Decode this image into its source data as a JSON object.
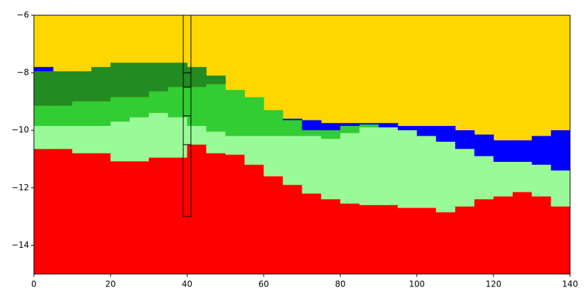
{
  "chart_data": {
    "type": "layers",
    "x": [
      0,
      5,
      10,
      15,
      20,
      25,
      30,
      35,
      40,
      45,
      50,
      55,
      60,
      65,
      70,
      75,
      80,
      85,
      90,
      95,
      100,
      105,
      110,
      115,
      120,
      125,
      130,
      135
    ],
    "xlim": [
      0,
      140
    ],
    "ylim": [
      -15,
      -6
    ],
    "xticks": [
      0,
      20,
      40,
      60,
      80,
      100,
      120,
      140
    ],
    "yticks": [
      {
        "value": -14,
        "label": "−14"
      },
      {
        "value": -12,
        "label": "−12"
      },
      {
        "value": -10,
        "label": "−10"
      },
      {
        "value": -8,
        "label": "−8"
      },
      {
        "value": -6,
        "label": "−6"
      }
    ],
    "background": "#ffd700",
    "series": [
      {
        "color": "#ff0000",
        "values": [
          -10.65,
          -10.65,
          -10.8,
          -10.8,
          -11.08,
          -11.08,
          -10.95,
          -10.95,
          -10.5,
          -10.8,
          -10.85,
          -11.2,
          -11.6,
          -11.9,
          -12.2,
          -12.4,
          -12.55,
          -12.6,
          -12.6,
          -12.7,
          -12.7,
          -12.85,
          -12.65,
          -12.4,
          -12.3,
          -12.15,
          -12.3,
          -12.65
        ]
      },
      {
        "color": "#98fb98",
        "values": [
          -9.85,
          -9.85,
          -9.85,
          -9.85,
          -9.7,
          -9.55,
          -9.4,
          -9.55,
          -9.85,
          -10.05,
          -10.2,
          -10.2,
          -10.2,
          -10.2,
          -10.2,
          -10.3,
          -10.1,
          -9.9,
          -9.9,
          -10.0,
          -10.2,
          -10.4,
          -10.65,
          -10.9,
          -11.1,
          -11.1,
          -11.2,
          -11.4
        ]
      },
      {
        "color": "#32cd32",
        "values": [
          -9.15,
          -9.15,
          -9.0,
          -9.0,
          -8.85,
          -8.85,
          -8.65,
          -8.5,
          -8.5,
          -8.4,
          -8.6,
          -8.85,
          -9.3,
          -9.6,
          -10.0,
          -10.0,
          -9.85,
          -9.8,
          -9.9,
          -10.0,
          -10.2,
          -10.4,
          -10.65,
          -10.9,
          -11.1,
          -11.1,
          -11.2,
          -11.4
        ]
      },
      {
        "color": "#228b22",
        "values": [
          -7.95,
          -7.95,
          -7.95,
          -7.8,
          -7.65,
          -7.65,
          -7.65,
          -7.65,
          -7.8,
          -8.1,
          -8.6,
          -8.85,
          -9.3,
          -9.6,
          -10.0,
          -10.0,
          -9.85,
          -9.8,
          -9.9,
          -10.0,
          -10.2,
          -10.4,
          -10.65,
          -10.9,
          -11.1,
          -11.1,
          -11.2,
          -11.4
        ]
      },
      {
        "color": "#0000ff",
        "values": [
          -7.8,
          -7.95,
          -7.95,
          -7.8,
          -7.65,
          -7.65,
          -7.65,
          -7.65,
          -7.8,
          -8.1,
          -8.6,
          -8.85,
          -9.3,
          -9.65,
          -9.65,
          -9.75,
          -9.75,
          -9.75,
          -9.75,
          -9.85,
          -9.85,
          -9.85,
          -10.0,
          -10.15,
          -10.35,
          -10.35,
          -10.2,
          -10.0
        ]
      }
    ],
    "borehole": {
      "x": [
        39,
        41
      ],
      "depths": [
        -6,
        -8,
        -8.5,
        -9.5,
        -10.5,
        -13
      ]
    }
  }
}
